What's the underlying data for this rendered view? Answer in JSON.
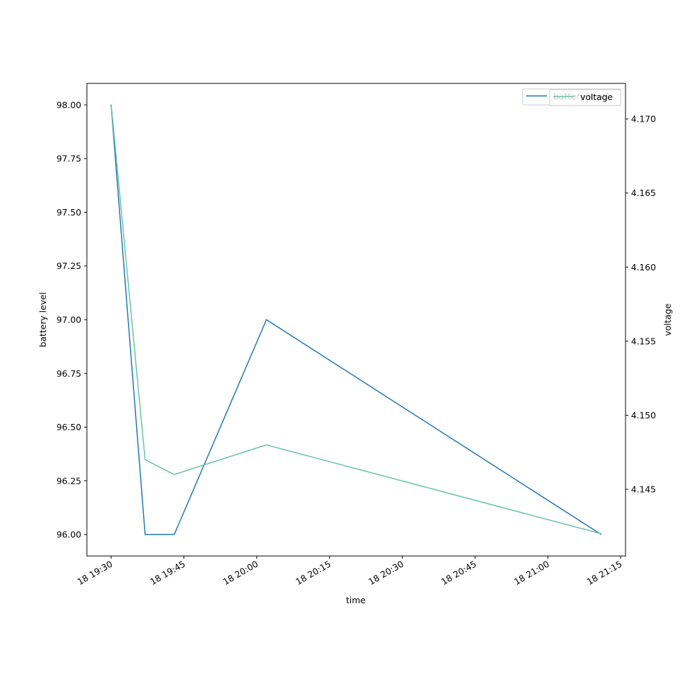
{
  "chart_data": {
    "type": "line",
    "x": [
      "18 19:30",
      "18 19:37",
      "18 19:43",
      "18 20:02",
      "18 21:11"
    ],
    "xlim": [
      "18 19:25",
      "18 21:16"
    ],
    "xticks": [
      "18 19:30",
      "18 19:45",
      "18 20:00",
      "18 20:15",
      "18 20:30",
      "18 20:45",
      "18 21:00",
      "18 21:15"
    ],
    "x_label": "time",
    "y_label": "battery level",
    "y2_label": "voltage",
    "ylim": [
      95.9,
      98.1
    ],
    "yticks": [
      {
        "value": 96,
        "label": "96.00"
      },
      {
        "value": 96.25,
        "label": "96.25"
      },
      {
        "value": 96.5,
        "label": "96.50"
      },
      {
        "value": 96.75,
        "label": "96.75"
      },
      {
        "value": 97,
        "label": "97.00"
      },
      {
        "value": 97.25,
        "label": "97.25"
      },
      {
        "value": 97.5,
        "label": "97.50"
      },
      {
        "value": 97.75,
        "label": "97.75"
      },
      {
        "value": 98,
        "label": "98.00"
      }
    ],
    "y2lim": [
      4.1405,
      4.1724
    ],
    "y2ticks": [
      {
        "value": 4.145,
        "label": "4.145"
      },
      {
        "value": 4.15,
        "label": "4.150"
      },
      {
        "value": 4.155,
        "label": "4.155"
      },
      {
        "value": 4.16,
        "label": "4.160"
      },
      {
        "value": 4.165,
        "label": "4.165"
      },
      {
        "value": 4.17,
        "label": "4.170"
      }
    ],
    "legend": "upper right",
    "series": [
      {
        "name": "battery level",
        "color": "#1f77b4",
        "values": [
          98,
          96,
          96,
          97,
          96
        ]
      },
      {
        "name": "voltage",
        "color": "#66c2a5",
        "axis": "y2",
        "values": [
          4.171,
          4.147,
          4.146,
          4.148,
          4.142
        ]
      }
    ]
  }
}
